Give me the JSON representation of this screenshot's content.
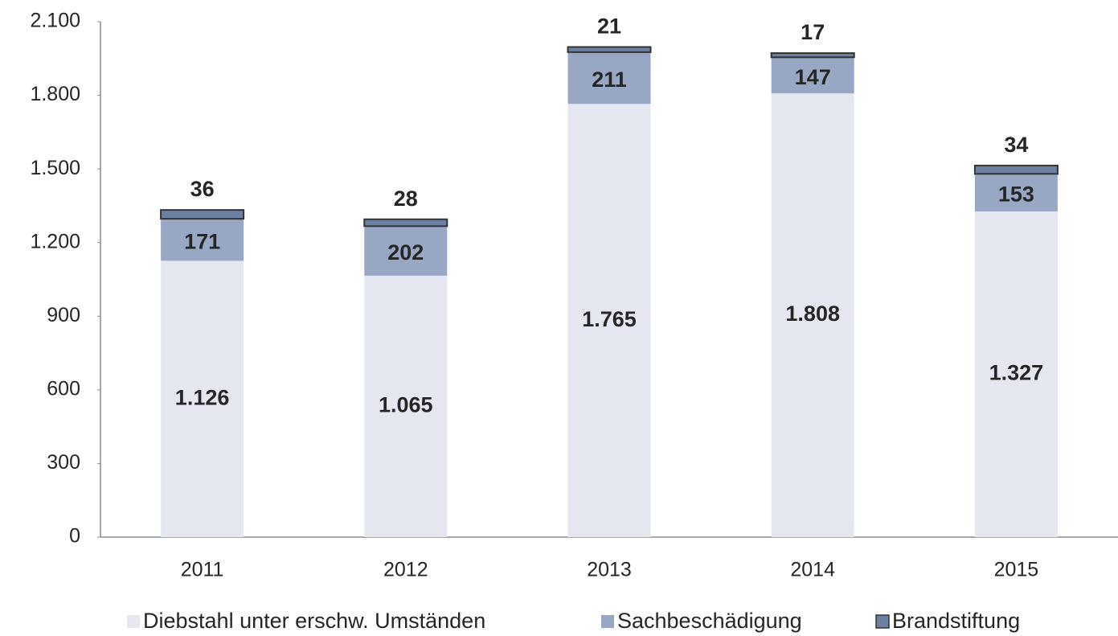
{
  "chart_data": {
    "type": "stacked_bar",
    "categories": [
      "2011",
      "2012",
      "2013",
      "2014",
      "2015"
    ],
    "series": [
      {
        "name": "Diebstahl unter erschw. Umständen",
        "color": "#e4e7f0",
        "values": [
          1126,
          1065,
          1765,
          1808,
          1327
        ],
        "value_labels": [
          "1.126",
          "1.065",
          "1.765",
          "1.808",
          "1.327"
        ]
      },
      {
        "name": "Sachbeschädigung",
        "color": "#98a8c4",
        "values": [
          171,
          202,
          211,
          147,
          153
        ]
      },
      {
        "name": "Brandstiftung",
        "color": "#6b80a3",
        "values": [
          36,
          28,
          21,
          17,
          34
        ]
      }
    ],
    "ylim": [
      0,
      2100
    ],
    "yticks": [
      0,
      300,
      600,
      900,
      {
        "value": 1200,
        "label": "1.200"
      },
      {
        "value": 1500,
        "label": "1.500"
      },
      {
        "value": 1800,
        "label": "1.800"
      },
      {
        "value": 2100,
        "label": "2.100"
      }
    ],
    "grid": false,
    "legend": "bottom"
  }
}
